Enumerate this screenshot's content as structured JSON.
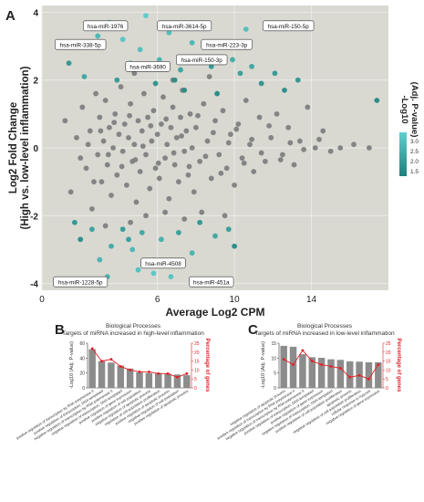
{
  "colors": {
    "panel_bg": "#d9d9d2",
    "grid": "#ecece7",
    "gray_point": "#7f7f7f",
    "teal_dark": "#1f7f7a",
    "teal_light": "#5fd0cf",
    "bar": "#8c8c8c",
    "line": "#e31e24",
    "line_label": "#e31e24"
  },
  "panel_a": {
    "letter": "A",
    "xlabel": "Average Log2 CPM",
    "ylabel": [
      "Log2 Fold Change",
      "(High vs. low-level inflammation)"
    ],
    "legend": {
      "title": [
        "-Log10",
        "(Adj. P-value)"
      ],
      "ticks": [
        "3.0",
        "2.5",
        "2.0",
        "1.5"
      ]
    }
  },
  "panel_b": {
    "letter": "B",
    "title": "Biological Processes",
    "subtitle": "Targets of miRNA increased in high-level inflammation",
    "ylabel": "-Log10 (Adj. P-value)",
    "y2label": "Percentage of genes"
  },
  "panel_c": {
    "letter": "C",
    "title": "Biological Processes",
    "subtitle": "Targets of miRNA increased in low-level inflammation",
    "ylabel": "-Log10 (Adj. P-value)",
    "y2label": "Percentage of genes"
  },
  "chart_data": [
    {
      "type": "scatter",
      "title": "",
      "xlabel": "Average Log2 CPM",
      "ylabel": "Log2 Fold Change (High vs. low-level inflammation)",
      "xlim": [
        0,
        18
      ],
      "ylim": [
        -4.2,
        4.2
      ],
      "xticks": [
        "0",
        "6",
        "10",
        "14"
      ],
      "xtick_values": [
        0,
        6,
        10,
        14
      ],
      "yticks": [
        "-4",
        "-2",
        "0",
        "2",
        "4"
      ],
      "ytick_values": [
        -4,
        -2,
        0,
        2,
        4
      ],
      "grid": true,
      "color_scale": {
        "label": "-Log10 (Adj. P-value)",
        "min": 1.3,
        "max": 3.2
      },
      "labels": [
        {
          "text": "hsa-miR-1976",
          "x": 3.3,
          "y": 3.6
        },
        {
          "text": "hsa-miR-3614-5p",
          "x": 7.4,
          "y": 3.6
        },
        {
          "text": "hsa-miR-150-5p",
          "x": 12.8,
          "y": 3.6
        },
        {
          "text": "hsa-miR-338-5p",
          "x": 2.0,
          "y": 3.05
        },
        {
          "text": "hsa-miR-223-3p",
          "x": 9.6,
          "y": 3.05
        },
        {
          "text": "hsa-miR-150-3p",
          "x": 8.3,
          "y": 2.6
        },
        {
          "text": "hsa-miR-3690",
          "x": 5.5,
          "y": 2.4
        },
        {
          "text": "hsa-miR-4508",
          "x": 6.3,
          "y": -3.4
        },
        {
          "text": "hsa-miR-1228-5p",
          "x": 2.0,
          "y": -3.95
        },
        {
          "text": "hsa-miR-451a",
          "x": 8.8,
          "y": -3.95
        }
      ],
      "points": [
        [
          1.2,
          0.8,
          0
        ],
        [
          1.5,
          -1.3,
          0
        ],
        [
          1.8,
          0.3,
          0
        ],
        [
          2.1,
          1.2,
          0
        ],
        [
          2.3,
          -0.6,
          0
        ],
        [
          2.5,
          0.5,
          0
        ],
        [
          2.6,
          -1.8,
          0
        ],
        [
          2.8,
          1.6,
          0
        ],
        [
          2.9,
          -0.2,
          0
        ],
        [
          3.0,
          0.9,
          0
        ],
        [
          3.1,
          -1.0,
          0
        ],
        [
          3.2,
          0.2,
          0
        ],
        [
          3.3,
          1.4,
          0
        ],
        [
          3.4,
          -0.5,
          0
        ],
        [
          3.5,
          0.6,
          0
        ],
        [
          3.6,
          -1.4,
          0
        ],
        [
          3.7,
          0.0,
          0
        ],
        [
          3.8,
          1.0,
          0
        ],
        [
          3.9,
          -0.8,
          0
        ],
        [
          4.0,
          0.4,
          0
        ],
        [
          4.1,
          1.8,
          0
        ],
        [
          4.2,
          -0.1,
          0
        ],
        [
          4.3,
          0.7,
          0
        ],
        [
          4.4,
          -1.1,
          0
        ],
        [
          4.5,
          0.3,
          0
        ],
        [
          4.6,
          1.3,
          0
        ],
        [
          4.7,
          -0.4,
          0
        ],
        [
          4.8,
          0.1,
          0
        ],
        [
          4.9,
          -1.6,
          0
        ],
        [
          5.0,
          0.8,
          0
        ],
        [
          5.1,
          -0.7,
          0
        ],
        [
          5.2,
          0.5,
          0
        ],
        [
          5.3,
          1.6,
          0
        ],
        [
          5.4,
          -0.2,
          0
        ],
        [
          5.5,
          0.9,
          0
        ],
        [
          5.6,
          -1.2,
          0
        ],
        [
          5.7,
          0.2,
          0
        ],
        [
          5.8,
          1.1,
          0
        ],
        [
          5.9,
          -0.6,
          0
        ],
        [
          6.0,
          0.4,
          0
        ],
        [
          6.1,
          -0.9,
          0
        ],
        [
          6.2,
          0.7,
          0
        ],
        [
          6.3,
          1.5,
          0
        ],
        [
          6.4,
          -0.3,
          0
        ],
        [
          6.5,
          0.1,
          0
        ],
        [
          6.6,
          -1.5,
          0
        ],
        [
          6.7,
          0.6,
          0
        ],
        [
          6.8,
          1.2,
          0
        ],
        [
          6.9,
          -0.5,
          0
        ],
        [
          7.0,
          0.3,
          0
        ],
        [
          7.1,
          -1.0,
          0
        ],
        [
          7.2,
          0.9,
          0
        ],
        [
          7.3,
          1.7,
          0
        ],
        [
          7.4,
          -0.1,
          0
        ],
        [
          7.5,
          0.5,
          0
        ],
        [
          7.6,
          -0.8,
          0
        ],
        [
          7.7,
          1.0,
          0
        ],
        [
          7.8,
          0.0,
          0
        ],
        [
          7.9,
          -1.3,
          0
        ],
        [
          8.0,
          0.6,
          0
        ],
        [
          8.2,
          -0.4,
          0
        ],
        [
          8.4,
          1.3,
          0
        ],
        [
          8.6,
          0.2,
          0
        ],
        [
          8.8,
          -0.9,
          0
        ],
        [
          9.0,
          0.8,
          0
        ],
        [
          9.2,
          -0.2,
          0
        ],
        [
          9.4,
          1.1,
          0
        ],
        [
          9.6,
          -0.6,
          0
        ],
        [
          9.8,
          0.4,
          0
        ],
        [
          10.0,
          -1.1,
          0
        ],
        [
          10.2,
          0.7,
          0
        ],
        [
          10.4,
          -0.3,
          0
        ],
        [
          10.6,
          1.4,
          0
        ],
        [
          10.8,
          0.1,
          0
        ],
        [
          11.0,
          -0.7,
          0
        ],
        [
          11.3,
          0.9,
          0
        ],
        [
          11.6,
          -0.4,
          0
        ],
        [
          11.9,
          0.3,
          0
        ],
        [
          12.2,
          1.0,
          0
        ],
        [
          12.5,
          -0.2,
          0
        ],
        [
          12.8,
          0.6,
          0
        ],
        [
          13.1,
          -0.5,
          0
        ],
        [
          13.4,
          0.2,
          0
        ],
        [
          13.8,
          1.2,
          0
        ],
        [
          14.2,
          0.0,
          0
        ],
        [
          14.6,
          0.5,
          0
        ],
        [
          15.0,
          -0.1,
          0
        ],
        [
          15.5,
          0.0,
          0
        ],
        [
          16.2,
          0.1,
          0
        ],
        [
          17.0,
          0.0,
          0
        ],
        [
          2.0,
          -0.3,
          0
        ],
        [
          2.4,
          0.1,
          0
        ],
        [
          2.7,
          -1.0,
          0
        ],
        [
          3.05,
          0.5,
          0
        ],
        [
          3.45,
          -0.2,
          0
        ],
        [
          3.75,
          0.75,
          0
        ],
        [
          4.15,
          -0.55,
          0
        ],
        [
          4.55,
          0.95,
          0
        ],
        [
          4.85,
          -0.35,
          0
        ],
        [
          5.25,
          0.05,
          0
        ],
        [
          5.65,
          0.65,
          0
        ],
        [
          6.05,
          -0.45,
          0
        ],
        [
          6.45,
          0.85,
          0
        ],
        [
          6.85,
          -0.15,
          0
        ],
        [
          7.25,
          0.35,
          0
        ],
        [
          7.65,
          -0.55,
          0
        ],
        [
          8.1,
          0.95,
          0
        ],
        [
          8.5,
          -0.25,
          0
        ],
        [
          8.9,
          0.45,
          0
        ],
        [
          9.3,
          -0.75,
          0
        ],
        [
          9.7,
          0.15,
          0
        ],
        [
          10.1,
          0.55,
          0
        ],
        [
          10.5,
          -0.45,
          0
        ],
        [
          10.9,
          0.25,
          0
        ],
        [
          11.4,
          -0.15,
          0
        ],
        [
          11.8,
          0.65,
          0
        ],
        [
          12.4,
          -0.35,
          0
        ],
        [
          12.9,
          0.15,
          0
        ],
        [
          13.6,
          -0.05,
          0
        ],
        [
          14.4,
          0.25,
          0
        ],
        [
          5.4,
          -2.0,
          0
        ],
        [
          6.4,
          -1.9,
          0
        ],
        [
          7.4,
          -2.1,
          0
        ],
        [
          4.6,
          -2.2,
          0
        ],
        [
          8.3,
          -1.9,
          0
        ],
        [
          9.5,
          -2.0,
          0
        ],
        [
          3.3,
          -2.3,
          0
        ],
        [
          6.8,
          2.0,
          0
        ],
        [
          8.7,
          2.1,
          0
        ],
        [
          4.8,
          2.2,
          0
        ],
        [
          1.4,
          2.5,
          1.8
        ],
        [
          2.2,
          2.1,
          2.2
        ],
        [
          2.9,
          3.3,
          2.6
        ],
        [
          3.5,
          3.7,
          3.0
        ],
        [
          4.2,
          3.2,
          2.9
        ],
        [
          4.6,
          2.5,
          2.4
        ],
        [
          5.1,
          2.9,
          2.8
        ],
        [
          5.4,
          3.9,
          3.1
        ],
        [
          6.1,
          2.6,
          2.5
        ],
        [
          6.6,
          3.4,
          2.7
        ],
        [
          7.2,
          2.3,
          2.1
        ],
        [
          7.8,
          3.1,
          2.6
        ],
        [
          8.3,
          2.6,
          2.7
        ],
        [
          8.8,
          2.4,
          1.9
        ],
        [
          9.3,
          3.0,
          2.4
        ],
        [
          9.9,
          2.6,
          2.3
        ],
        [
          10.3,
          2.2,
          2.0
        ],
        [
          10.9,
          2.4,
          2.2
        ],
        [
          11.4,
          1.9,
          1.7
        ],
        [
          12.1,
          2.2,
          1.9
        ],
        [
          12.6,
          1.7,
          1.6
        ],
        [
          13.3,
          2.0,
          1.8
        ],
        [
          17.4,
          1.4,
          1.5
        ],
        [
          11.8,
          3.6,
          2.5
        ],
        [
          10.6,
          3.5,
          2.8
        ],
        [
          5.9,
          1.9,
          1.7
        ],
        [
          6.9,
          2.0,
          1.6
        ],
        [
          9.1,
          1.6,
          1.5
        ],
        [
          3.9,
          2.0,
          1.9
        ],
        [
          7.4,
          1.7,
          1.6
        ],
        [
          1.7,
          -2.2,
          1.8
        ],
        [
          2.0,
          -2.7,
          1.6
        ],
        [
          2.6,
          -2.4,
          2.1
        ],
        [
          3.0,
          -3.3,
          2.5
        ],
        [
          3.6,
          -2.9,
          2.3
        ],
        [
          4.2,
          -2.4,
          1.9
        ],
        [
          4.7,
          -3.0,
          2.6
        ],
        [
          5.2,
          -2.5,
          2.2
        ],
        [
          5.8,
          -3.7,
          3.0
        ],
        [
          6.2,
          -2.7,
          2.4
        ],
        [
          6.7,
          -3.8,
          2.9
        ],
        [
          7.1,
          -2.5,
          2.0
        ],
        [
          7.8,
          -3.1,
          2.5
        ],
        [
          8.2,
          -2.2,
          1.8
        ],
        [
          9.0,
          -2.6,
          2.2
        ],
        [
          9.7,
          -2.4,
          2.0
        ],
        [
          10.0,
          -2.9,
          1.6
        ],
        [
          5.0,
          -3.6,
          2.8
        ],
        [
          3.4,
          -3.8,
          2.4
        ],
        [
          4.5,
          -2.7,
          2.0
        ]
      ]
    },
    {
      "type": "bar",
      "title": "Biological Processes",
      "subtitle": "Targets of miRNA increased in high-level inflammation",
      "ylabel": "-Log10 (Adj. P-value)",
      "y2label": "Percentage of genes",
      "ylim": [
        0,
        60
      ],
      "y2lim": [
        0,
        25
      ],
      "yticks": [
        "0",
        "20",
        "40",
        "60"
      ],
      "y2ticks": [
        "0",
        "5",
        "10",
        "15",
        "20",
        "25"
      ],
      "categories": [
        "positive regulation of transcription by RNA polymerase II",
        "positive regulation of transcription, DNA-templated",
        "negative regulation of transcription by RNA polymerase II",
        "negative regulation of transcription, DNA-templated",
        "positive regulation of gene expression",
        "positive regulation of cell population",
        "negative regulation of apoptotic process",
        "regulation of cell population proliferation",
        "positive regulation of apoptotic process",
        "negative regulation of cell population",
        "positive regulation of apoptotic process"
      ],
      "series": [
        {
          "values": [
            52,
            36,
            34,
            30,
            26,
            21,
            20,
            20,
            19,
            18,
            17
          ]
        },
        {
          "values": [
            22,
            15,
            16,
            12,
            10,
            9,
            9,
            8,
            8,
            6,
            8
          ]
        }
      ]
    },
    {
      "type": "bar",
      "title": "Biological Processes",
      "subtitle": "Targets of miRNA increased in low-level inflammation",
      "ylabel": "-Log10 (Adj. P-value)",
      "y2label": "Percentage of genes",
      "ylim": [
        0,
        15
      ],
      "y2lim": [
        0,
        25
      ],
      "yticks": [
        "0",
        "5",
        "10",
        "15"
      ],
      "y2ticks": [
        "0",
        "5",
        "10",
        "15",
        "20",
        "25"
      ],
      "categories": [
        "negative regulation of apoptotic process",
        "positive regulation of transcription by RNA polymerase II",
        "negative regulation of transcription by RNA polymerase II",
        "positive regulation of transcription, DNA-templated",
        "positive regulation of gene expression",
        "negative regulation of transcription, DNA-templated",
        "positive regulation of cell population proliferation",
        "apoptotic process",
        "negative regulation of cell population proliferation",
        "cellular response to hypoxia",
        "negative regulation of gene expression"
      ],
      "series": [
        {
          "values": [
            14.1,
            13.8,
            11.3,
            10.3,
            10.1,
            9.6,
            9.4,
            8.9,
            8.8,
            8.6,
            8.6
          ]
        },
        {
          "values": [
            16,
            13,
            21,
            15,
            13,
            12,
            11,
            6,
            7,
            5,
            13
          ]
        }
      ]
    }
  ]
}
